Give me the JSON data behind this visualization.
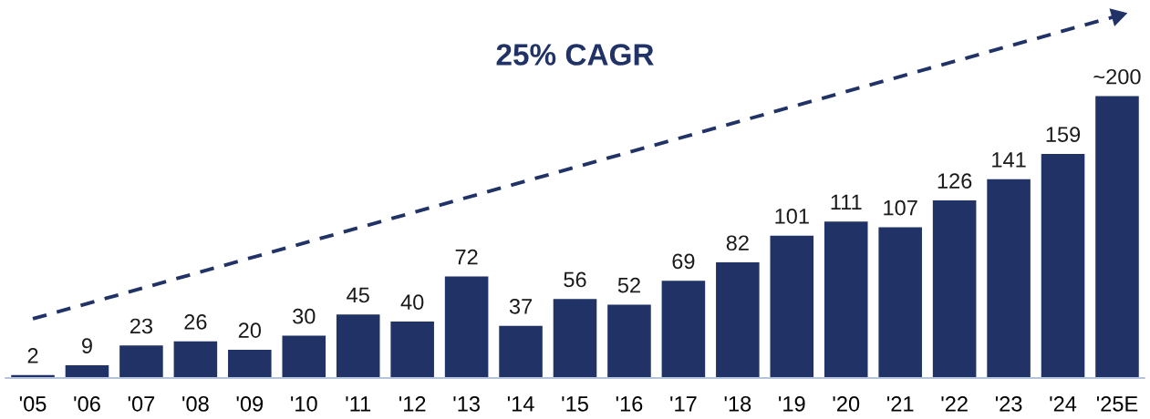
{
  "chart_data": {
    "type": "bar",
    "categories": [
      "'05",
      "'06",
      "'07",
      "'08",
      "'09",
      "'10",
      "'11",
      "'12",
      "'13",
      "'14",
      "'15",
      "'16",
      "'17",
      "'18",
      "'19",
      "'20",
      "'21",
      "'22",
      "'23",
      "'24",
      "'25E"
    ],
    "series": [
      {
        "color": "#213366",
        "values": [
          2,
          9,
          23,
          26,
          20,
          30,
          45,
          40,
          72,
          37,
          56,
          52,
          69,
          82,
          101,
          111,
          107,
          126,
          141,
          159,
          200
        ],
        "value_labels": [
          "2",
          "9",
          "23",
          "26",
          "20",
          "30",
          "45",
          "40",
          "72",
          "37",
          "56",
          "52",
          "69",
          "82",
          "101",
          "111",
          "107",
          "126",
          "141",
          "159",
          "~200"
        ]
      },
      {
        "type": "line",
        "x": [
          "'05",
          "'25E"
        ],
        "values": [
          42,
          257
        ],
        "color": "#213366",
        "line_style": "dashed"
      }
    ],
    "annotations": [
      "25% CAGR"
    ],
    "tick_labels": "x",
    "grid": false,
    "legend": false
  }
}
